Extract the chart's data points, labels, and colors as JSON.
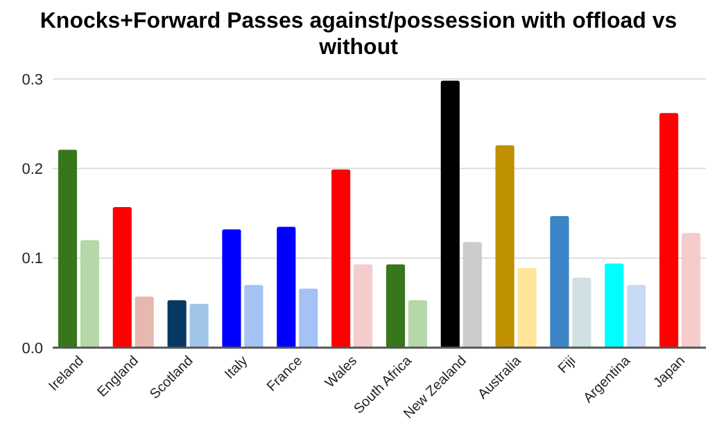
{
  "chart_data": {
    "type": "bar",
    "title": "Knocks+Forward Passes against/possession with offload vs without",
    "categories": [
      "Ireland",
      "England",
      "Scotland",
      "Italy",
      "France",
      "Wales",
      "South Africa",
      "New Zealand",
      "Australia",
      "Fiji",
      "Argentina",
      "Japan"
    ],
    "series": [
      {
        "values": [
          0.221,
          0.157,
          0.053,
          0.132,
          0.135,
          0.199,
          0.093,
          0.298,
          0.226,
          0.147,
          0.094,
          0.262
        ],
        "colors": [
          "#38761d",
          "#ff0000",
          "#073763",
          "#0000ff",
          "#0000ff",
          "#ff0000",
          "#38761d",
          "#000000",
          "#bf9000",
          "#3d85c6",
          "#00ffff",
          "#ff0000"
        ]
      },
      {
        "values": [
          0.12,
          0.057,
          0.049,
          0.07,
          0.066,
          0.093,
          0.053,
          0.118,
          0.089,
          0.078,
          0.07,
          0.128
        ],
        "colors": [
          "#b6d7a8",
          "#e6b8af",
          "#9fc5e8",
          "#a4c2f4",
          "#a4c2f4",
          "#f4cccc",
          "#b6d7a8",
          "#cccccc",
          "#ffe599",
          "#d0e0e3",
          "#c9daf8",
          "#f4cccc"
        ]
      }
    ],
    "ylim": [
      0,
      0.3
    ],
    "yticks": [
      {
        "value": 0,
        "label": "0.0"
      },
      0.1,
      0.2,
      0.3
    ],
    "grid": "y"
  }
}
